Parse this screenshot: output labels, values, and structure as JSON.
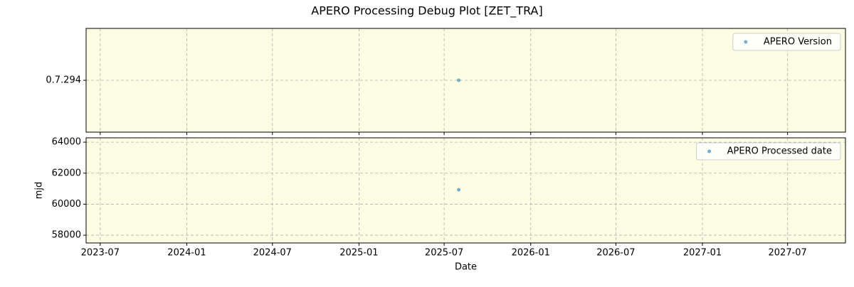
{
  "title": "APERO Processing Debug Plot [ZET_TRA]",
  "chart_data": [
    {
      "type": "scatter",
      "background": "#fdfde3",
      "x": [
        "2025-08"
      ],
      "series": [
        {
          "name": "APERO Version",
          "color": "#1f77b4",
          "values": [
            "0.7.294"
          ]
        }
      ],
      "y_categories": [
        "0.7.294"
      ],
      "xlim": [
        "2023-06",
        "2027-11"
      ],
      "xticks": [
        "2023-07",
        "2024-01",
        "2024-07",
        "2025-01",
        "2025-07",
        "2026-01",
        "2026-07",
        "2027-01",
        "2027-07"
      ],
      "grid": true,
      "legend": "upper right"
    },
    {
      "type": "scatter",
      "background": "#fdfde3",
      "x": [
        "2025-08"
      ],
      "series": [
        {
          "name": "APERO Processed date",
          "color": "#1f77b4",
          "values": [
            60930
          ]
        }
      ],
      "xlim": [
        "2023-06",
        "2027-11"
      ],
      "xticks": [
        "2023-07",
        "2024-01",
        "2024-07",
        "2025-01",
        "2025-07",
        "2026-01",
        "2026-07",
        "2027-01",
        "2027-07"
      ],
      "ylim": [
        57500,
        64280
      ],
      "yticks": [
        58000,
        60000,
        62000,
        64000
      ],
      "x_label": "Date",
      "y_label": "mjd",
      "grid": true,
      "legend": "upper right"
    }
  ]
}
